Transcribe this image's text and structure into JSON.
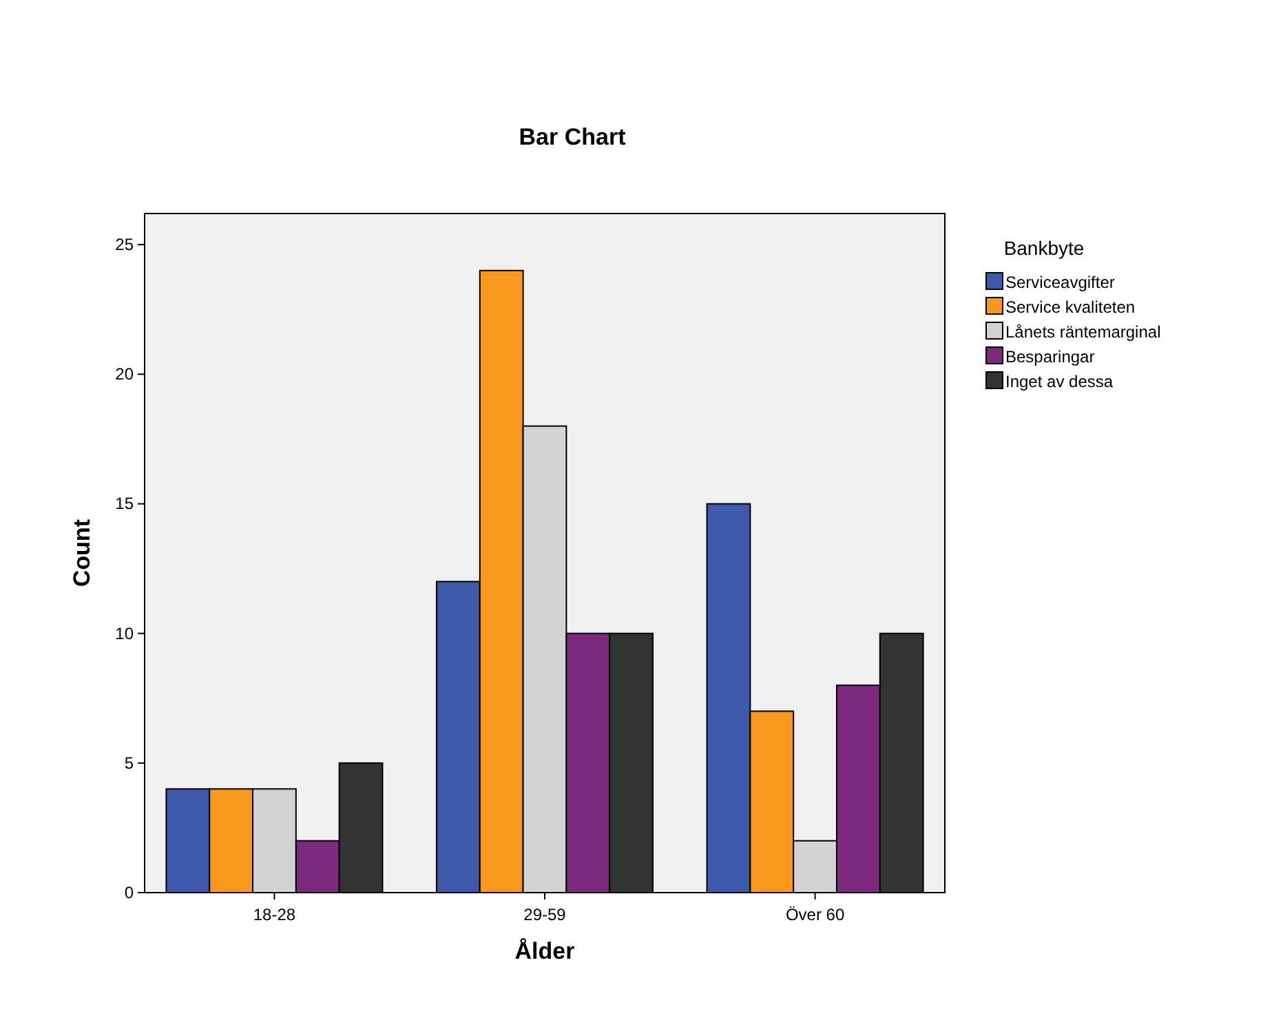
{
  "chart_data": {
    "type": "bar",
    "title": "Bar Chart",
    "xlabel": "Ålder",
    "ylabel": "Count",
    "legend_title": "Bankbyte",
    "categories": [
      "18-28",
      "29-59",
      "Över 60"
    ],
    "series": [
      {
        "name": "Serviceavgifter",
        "color": "#3e58ac",
        "values": [
          4,
          12,
          15
        ]
      },
      {
        "name": "Service kvaliteten",
        "color": "#f8981d",
        "values": [
          4,
          24,
          7
        ]
      },
      {
        "name": "Lånets räntemarginal",
        "color": "#d3d3d3",
        "values": [
          4,
          18,
          2
        ]
      },
      {
        "name": "Besparingar",
        "color": "#7b287d",
        "values": [
          2,
          10,
          8
        ]
      },
      {
        "name": "Inget av dessa",
        "color": "#333333",
        "values": [
          5,
          10,
          10
        ]
      }
    ],
    "ylim": [
      0,
      26.2
    ],
    "yticks": [
      0,
      5,
      10,
      15,
      20,
      25
    ],
    "grid": false,
    "legend": "right"
  }
}
